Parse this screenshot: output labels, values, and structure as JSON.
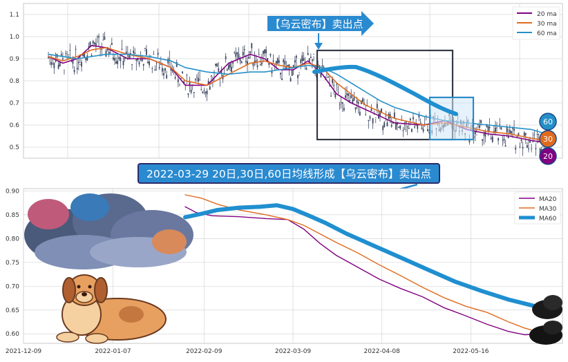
{
  "colors": {
    "ma20": "#800080",
    "ma30": "#e06a1e",
    "ma60": "#2590c8",
    "thick60": "#1f8fd0",
    "grid": "#d6d6d6",
    "candle": "#3c4660",
    "box_dark": "#333a44",
    "box_blue": "#2a8ac6",
    "box_blue_fill": "#d2e8f7",
    "banner_bg": "#2a8ad0",
    "banner_border": "#2a2a6a",
    "annot_text": "#ffffff"
  },
  "top_panel": {
    "annotation_title": "【乌云密布】卖出点",
    "badges": {
      "ma60": "60",
      "ma30": "30",
      "ma20": "20"
    }
  },
  "banner": {
    "text": "2022-03-29 20日,30日,60日均线形成【乌云密布】卖出点"
  },
  "chart_data": [
    {
      "type": "line",
      "title": "",
      "ylim": [
        0.45,
        1.15
      ],
      "yticks": [
        "0.5",
        "0.6",
        "0.7",
        "0.8",
        "0.9",
        "1.0",
        "1.1"
      ],
      "ytick_values": [
        0.5,
        0.6,
        0.7,
        0.8,
        0.9,
        1.0,
        1.1
      ],
      "legend": [
        "20 ma",
        "30 ma",
        "60 ma"
      ],
      "legend_position": "top-right",
      "grid": true,
      "series": [
        {
          "name": "20 ma",
          "x": [
            0,
            10,
            20,
            30,
            40,
            55,
            70,
            85,
            95,
            110,
            125,
            140,
            150,
            160,
            170,
            180,
            190,
            200,
            210,
            220,
            230,
            240,
            260,
            275,
            290,
            305,
            320,
            335,
            345
          ],
          "values": [
            0.91,
            0.88,
            0.9,
            0.96,
            0.95,
            0.9,
            0.9,
            0.86,
            0.78,
            0.78,
            0.88,
            0.92,
            0.9,
            0.85,
            0.85,
            0.89,
            0.83,
            0.74,
            0.7,
            0.67,
            0.64,
            0.61,
            0.6,
            0.62,
            0.58,
            0.56,
            0.55,
            0.53,
            0.52
          ]
        },
        {
          "name": "30 ma",
          "x": [
            0,
            10,
            20,
            30,
            40,
            55,
            70,
            85,
            95,
            110,
            125,
            140,
            150,
            160,
            170,
            180,
            190,
            200,
            210,
            220,
            230,
            240,
            260,
            275,
            290,
            305,
            320,
            335,
            345
          ],
          "values": [
            0.91,
            0.89,
            0.91,
            0.94,
            0.95,
            0.92,
            0.9,
            0.86,
            0.8,
            0.78,
            0.83,
            0.88,
            0.89,
            0.87,
            0.86,
            0.88,
            0.86,
            0.79,
            0.74,
            0.69,
            0.66,
            0.63,
            0.6,
            0.61,
            0.59,
            0.57,
            0.56,
            0.54,
            0.53
          ]
        },
        {
          "name": "60 ma",
          "x": [
            0,
            10,
            20,
            30,
            40,
            55,
            70,
            85,
            95,
            110,
            125,
            140,
            150,
            160,
            170,
            180,
            190,
            200,
            210,
            220,
            230,
            240,
            260,
            275,
            290,
            305,
            320,
            335,
            345
          ],
          "values": [
            0.92,
            0.91,
            0.9,
            0.91,
            0.92,
            0.92,
            0.91,
            0.89,
            0.86,
            0.84,
            0.83,
            0.84,
            0.84,
            0.85,
            0.86,
            0.87,
            0.86,
            0.83,
            0.79,
            0.75,
            0.71,
            0.68,
            0.64,
            0.62,
            0.61,
            0.6,
            0.59,
            0.58,
            0.56
          ]
        }
      ],
      "annotations": [
        "【乌云密布】卖出点",
        "60",
        "30",
        "20"
      ]
    },
    {
      "type": "line",
      "title": "",
      "ylim": [
        0.58,
        0.905
      ],
      "yticks": [
        "0.60",
        "0.65",
        "0.70",
        "0.75",
        "0.80",
        "0.85",
        "0.90"
      ],
      "ytick_values": [
        0.6,
        0.65,
        0.7,
        0.75,
        0.8,
        0.85,
        0.9
      ],
      "xticks": [
        "2021-12-09",
        "2022-01-07",
        "2022-02-09",
        "2022-03-09",
        "2022-04-08",
        "2022-05-16"
      ],
      "legend": [
        "MA20",
        "MA30",
        "MA60"
      ],
      "legend_position": "top-right",
      "grid": true,
      "series": [
        {
          "name": "MA20",
          "x": [
            0.3,
            0.32,
            0.35,
            0.4,
            0.45,
            0.49,
            0.52,
            0.55,
            0.58,
            0.62,
            0.66,
            0.7,
            0.74,
            0.78,
            0.82,
            0.86,
            0.9,
            0.93,
            0.96
          ],
          "values": [
            0.867,
            0.855,
            0.848,
            0.846,
            0.842,
            0.84,
            0.82,
            0.79,
            0.765,
            0.74,
            0.715,
            0.695,
            0.678,
            0.655,
            0.638,
            0.62,
            0.605,
            0.598,
            0.6
          ]
        },
        {
          "name": "MA30",
          "x": [
            0.3,
            0.33,
            0.36,
            0.4,
            0.45,
            0.49,
            0.52,
            0.55,
            0.58,
            0.62,
            0.66,
            0.7,
            0.74,
            0.78,
            0.82,
            0.86,
            0.9,
            0.93,
            0.96
          ],
          "values": [
            0.892,
            0.885,
            0.872,
            0.86,
            0.85,
            0.84,
            0.828,
            0.81,
            0.792,
            0.77,
            0.745,
            0.722,
            0.698,
            0.676,
            0.658,
            0.645,
            0.625,
            0.612,
            0.602
          ]
        },
        {
          "name": "MA60",
          "x": [
            0.3,
            0.33,
            0.36,
            0.4,
            0.44,
            0.47,
            0.5,
            0.53,
            0.56,
            0.6,
            0.65,
            0.7,
            0.75,
            0.8,
            0.85,
            0.9,
            0.96
          ],
          "values": [
            0.845,
            0.852,
            0.86,
            0.865,
            0.867,
            0.87,
            0.862,
            0.848,
            0.833,
            0.81,
            0.785,
            0.76,
            0.735,
            0.71,
            0.69,
            0.672,
            0.655
          ]
        }
      ]
    }
  ]
}
